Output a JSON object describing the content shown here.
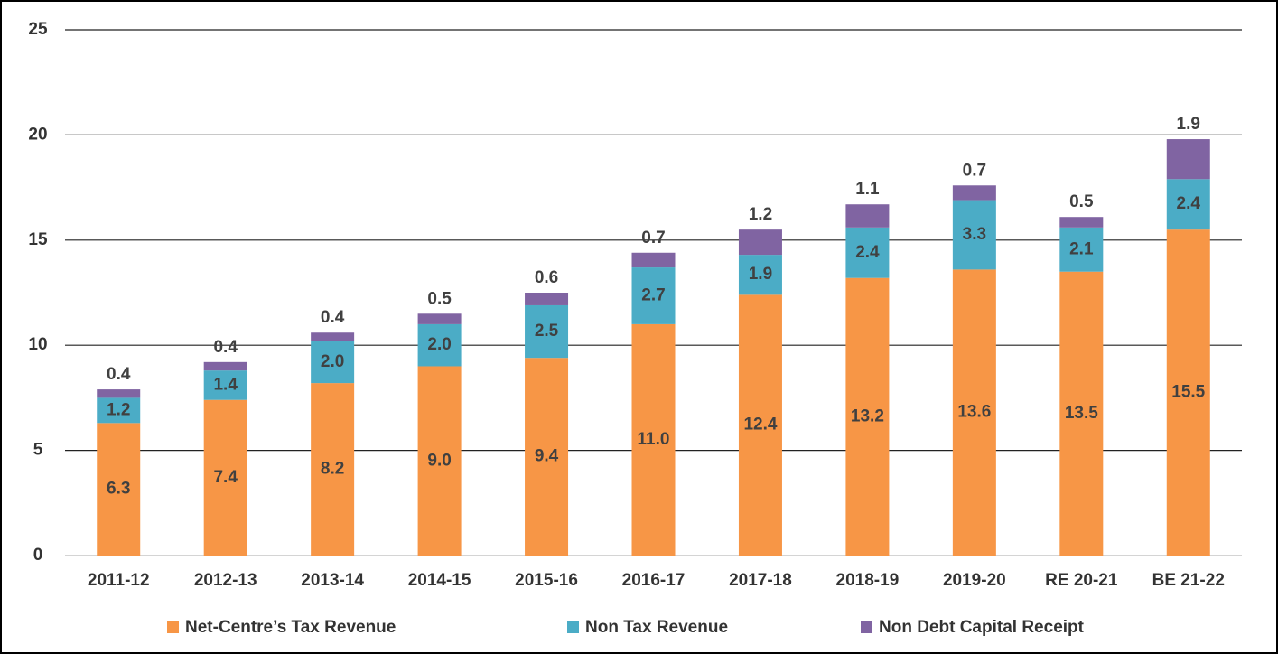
{
  "chart_data": {
    "type": "stacked_bar",
    "categories": [
      "2011-12",
      "2012-13",
      "2013-14",
      "2014-15",
      "2015-16",
      "2016-17",
      "2017-18",
      "2018-19",
      "2019-20",
      "RE 20-21",
      "BE 21-22"
    ],
    "series": [
      {
        "name": "Net-Centre’s Tax Revenue",
        "color": "#f79646",
        "values": [
          6.3,
          7.4,
          8.2,
          9.0,
          9.4,
          11.0,
          12.4,
          13.2,
          13.6,
          13.5,
          15.5
        ],
        "value_labels": [
          "6.3",
          "7.4",
          "8.2",
          "9.0",
          "9.4",
          "11.0",
          "12.4",
          "13.2",
          "13.6",
          "13.5",
          "15.5"
        ]
      },
      {
        "name": "Non Tax Revenue",
        "color": "#4bacc6",
        "values": [
          1.2,
          1.4,
          2.0,
          2.0,
          2.5,
          2.7,
          1.9,
          2.4,
          3.3,
          2.1,
          2.4
        ],
        "value_labels": [
          "1.2",
          "1.4",
          "2.0",
          "2.0",
          "2.5",
          "2.7",
          "1.9",
          "2.4",
          "3.3",
          "2.1",
          "2.4"
        ]
      },
      {
        "name": "Non Debt Capital Receipt",
        "color": "#8064a2",
        "values": [
          0.4,
          0.4,
          0.4,
          0.5,
          0.6,
          0.7,
          1.2,
          1.1,
          0.7,
          0.5,
          1.9
        ],
        "value_labels": [
          "0.4",
          "0.4",
          "0.4",
          "0.5",
          "0.6",
          "0.7",
          "1.2",
          "1.1",
          "0.7",
          "0.5",
          "1.9"
        ]
      }
    ],
    "ylim": [
      0,
      25
    ],
    "yticks": [
      0,
      5,
      10,
      15,
      20,
      25
    ],
    "grid": true,
    "legend": "bottom"
  }
}
